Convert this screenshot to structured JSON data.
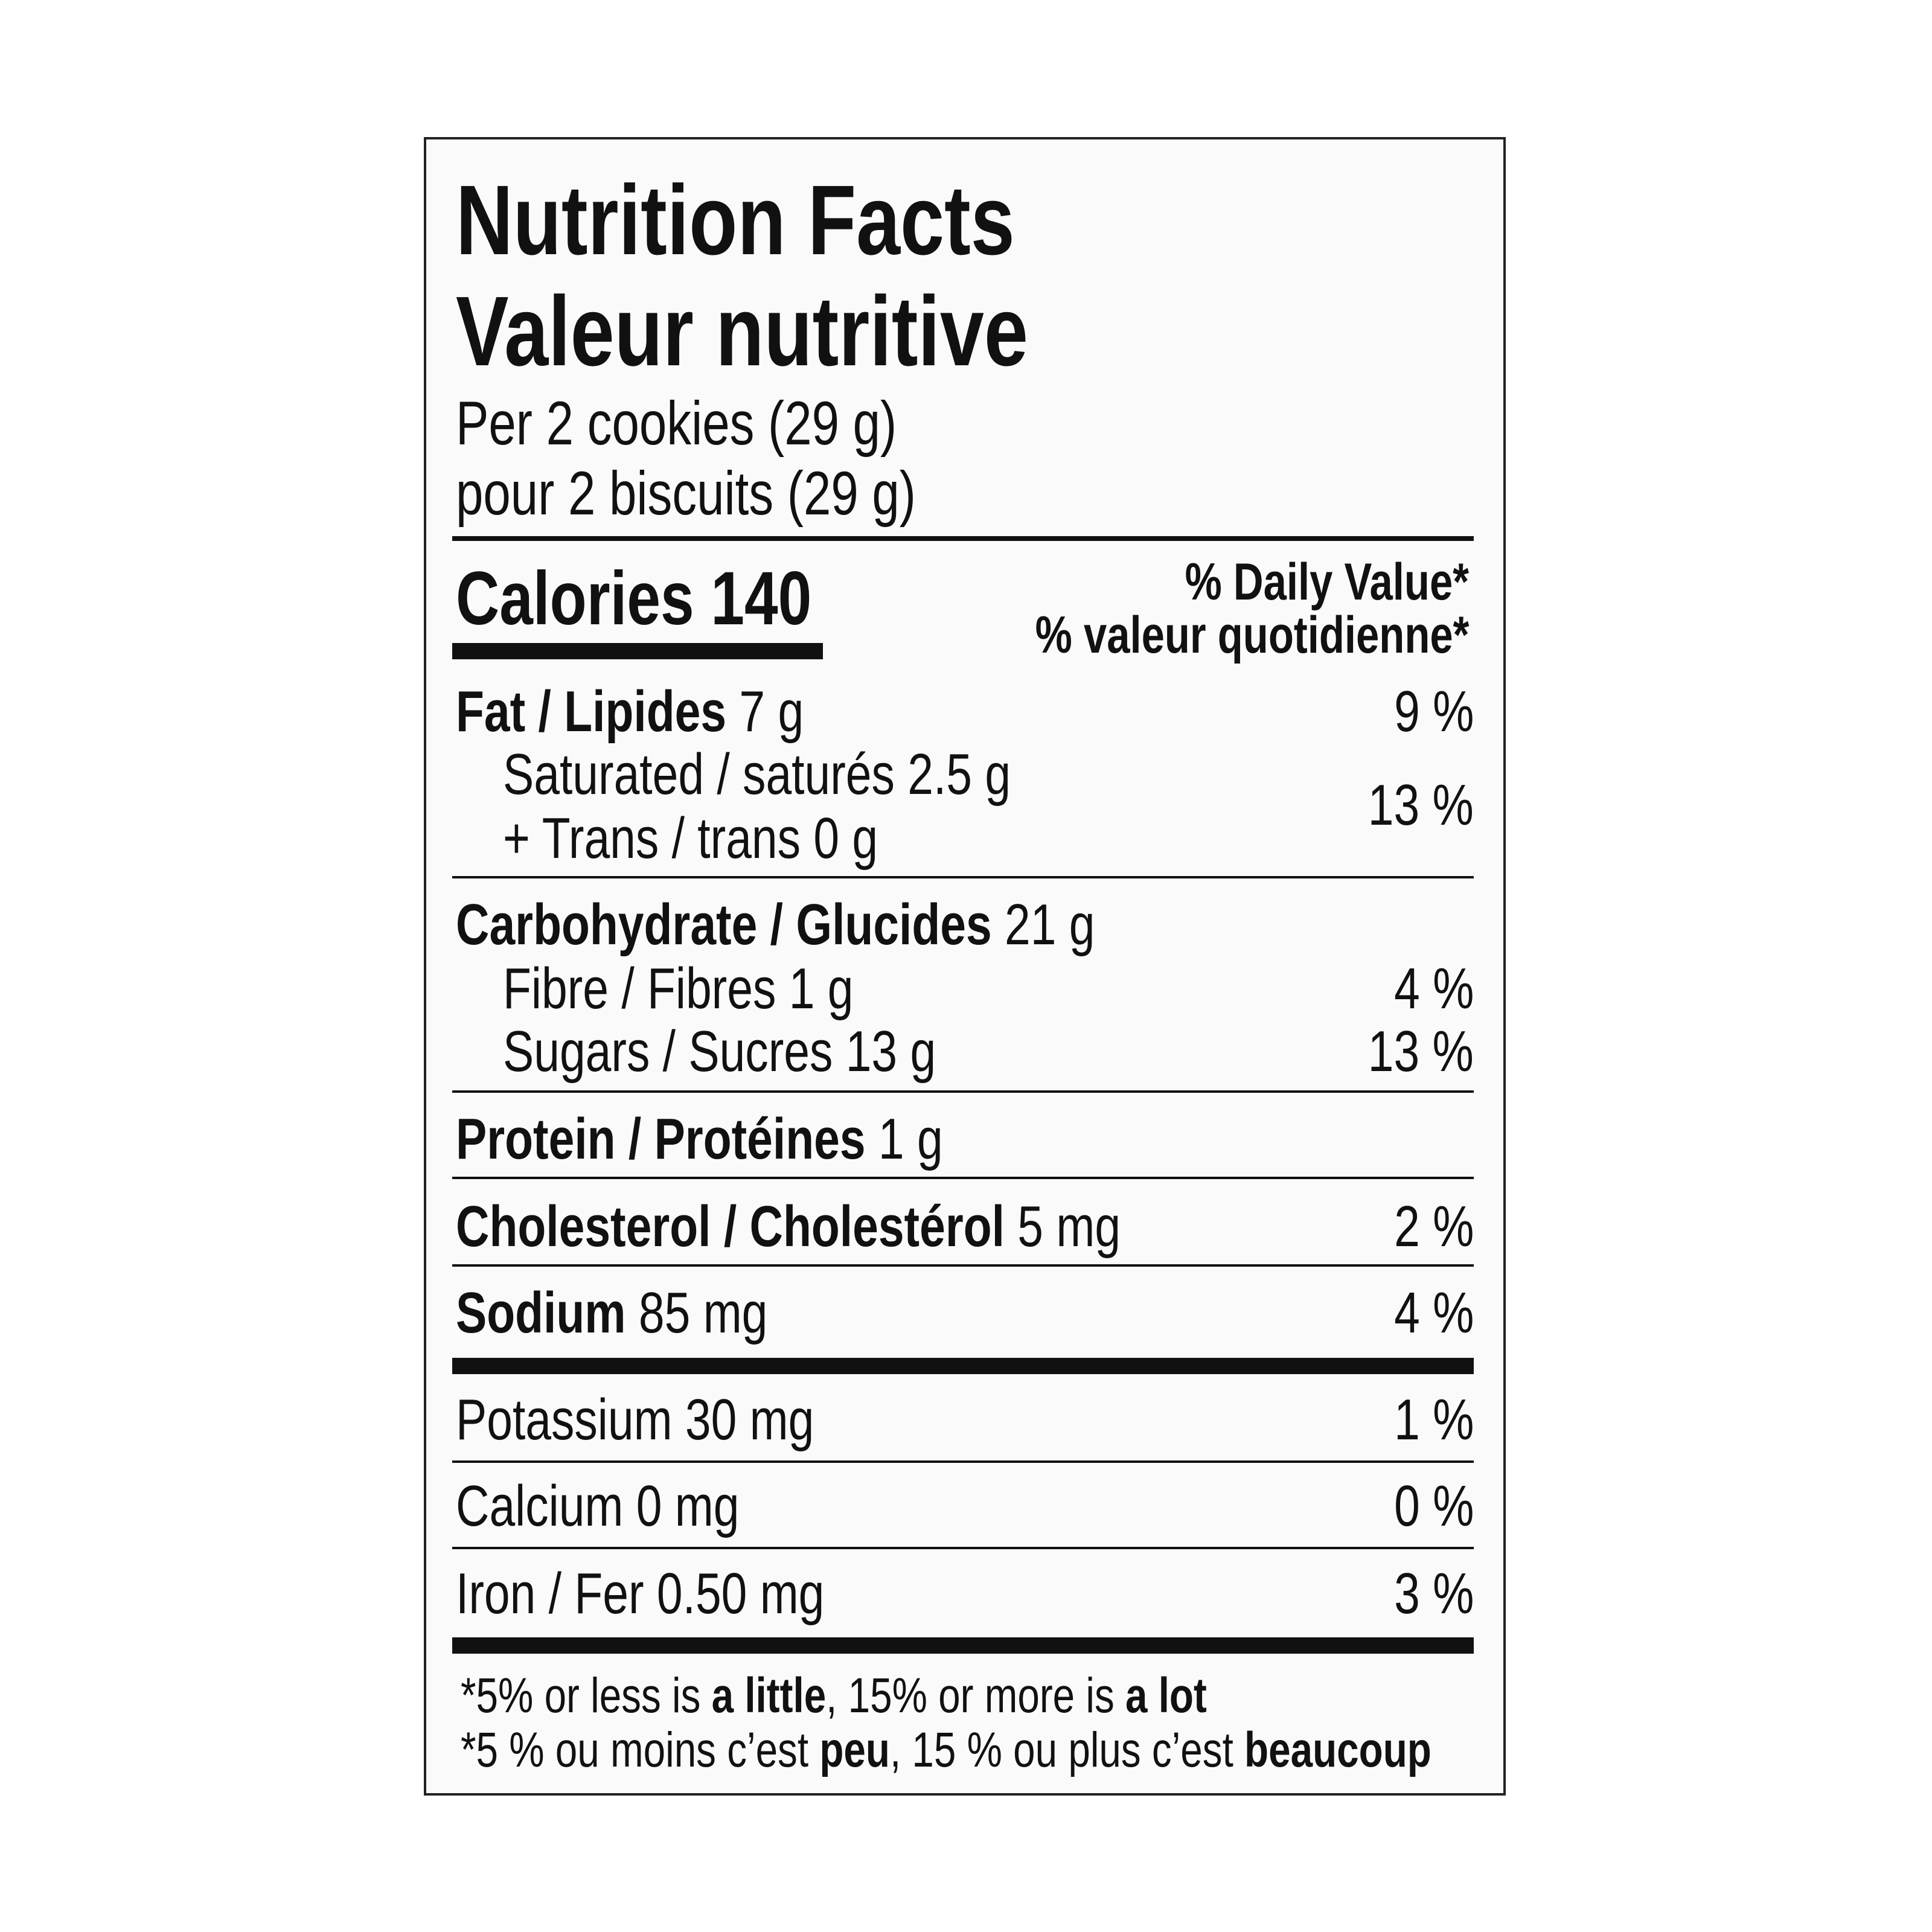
{
  "header": {
    "title_en": "Nutrition Facts",
    "title_fr": "Valeur nutritive",
    "serving_en": "Per 2 cookies (29 g)",
    "serving_fr": "pour 2 biscuits (29 g)"
  },
  "calories": {
    "label": "Calories 140"
  },
  "daily_value": {
    "en": "% Daily Value*",
    "fr": "% valeur quotidienne*"
  },
  "nutrients": [
    {
      "label": "Fat / Lipides",
      "amount": " 7 g",
      "pct": "9 %"
    },
    {
      "label": "Saturated / saturés 2.5 g",
      "pct": "13 %"
    },
    {
      "label": "+ Trans / trans 0 g"
    },
    {
      "label": "Carbohydrate / Glucides",
      "amount": " 21 g"
    },
    {
      "label": "Fibre / Fibres 1 g",
      "pct": "4 %"
    },
    {
      "label": "Sugars / Sucres 13 g",
      "pct": "13 %"
    },
    {
      "label": "Protein / Protéines",
      "amount": " 1 g"
    },
    {
      "label": "Cholesterol / Cholestérol",
      "amount": " 5 mg",
      "pct": "2 %"
    },
    {
      "label": "Sodium",
      "amount": " 85 mg",
      "pct": "4 %"
    },
    {
      "label": "Potassium 30 mg",
      "pct": "1 %"
    },
    {
      "label": "Calcium 0 mg",
      "pct": "0 %"
    },
    {
      "label": "Iron / Fer 0.50 mg",
      "pct": "3 %"
    }
  ],
  "footnote": {
    "en": [
      "*5% or less is ",
      "a little",
      ", 15% or more is ",
      "a lot"
    ],
    "fr": [
      "*5 % ou moins c’est ",
      "peu",
      ", 15 % ou plus c’est ",
      "beaucoup"
    ]
  }
}
